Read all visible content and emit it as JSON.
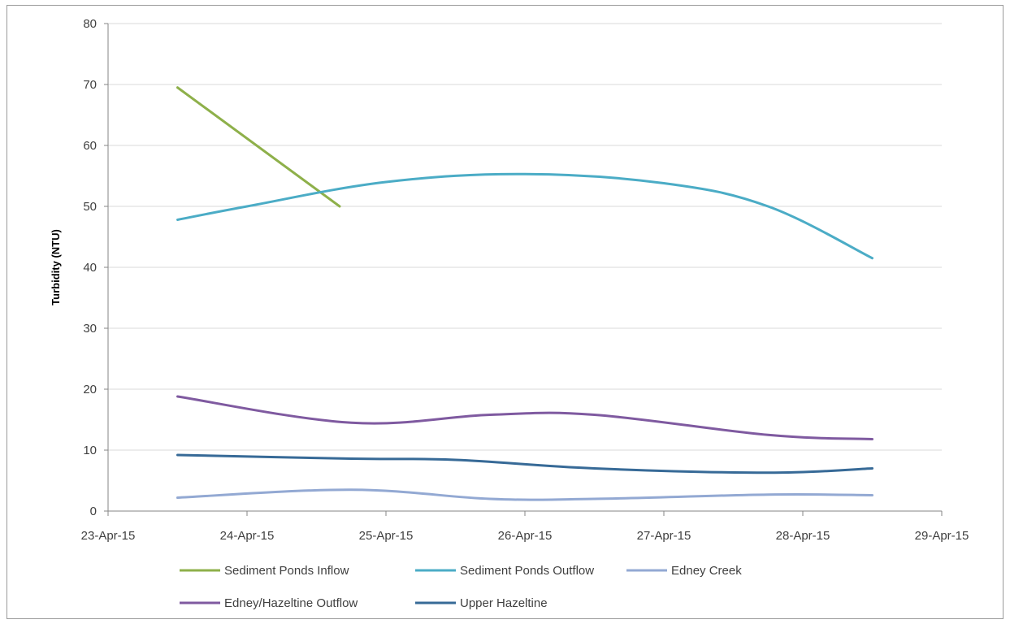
{
  "chart_data": {
    "type": "line",
    "title": "",
    "xlabel": "",
    "ylabel": "Turbidity (NTU)",
    "ylim": [
      0,
      80
    ],
    "yticks": [
      "0",
      "10",
      "20",
      "30",
      "40",
      "50",
      "60",
      "70",
      "80"
    ],
    "xlim": [
      "23-Apr-15",
      "29-Apr-15"
    ],
    "xticks": [
      "23-Apr-15",
      "24-Apr-15",
      "25-Apr-15",
      "26-Apr-15",
      "27-Apr-15",
      "28-Apr-15",
      "29-Apr-15"
    ],
    "grid": true,
    "smooth": true,
    "legend_position": "bottom",
    "series": [
      {
        "name": "Sediment Ponds Inflow",
        "color": "#8EB04A",
        "points": [
          [
            "23-Apr-15 12:00",
            69.5
          ],
          [
            "24-Apr-15 16:00",
            50.0
          ]
        ]
      },
      {
        "name": "Sediment Ponds Outflow",
        "color": "#4BACC6",
        "points": [
          [
            "23-Apr-15 12:00",
            47.8
          ],
          [
            "24-Apr-15 00:00",
            50.0
          ],
          [
            "25-Apr-15 00:00",
            54.0
          ],
          [
            "26-Apr-15 00:00",
            55.3
          ],
          [
            "27-Apr-15 00:00",
            53.8
          ],
          [
            "27-Apr-15 18:00",
            50.0
          ],
          [
            "28-Apr-15 12:00",
            41.5
          ]
        ]
      },
      {
        "name": "Edney Creek",
        "color": "#93A9D3",
        "points": [
          [
            "23-Apr-15 12:00",
            2.2
          ],
          [
            "24-Apr-15 18:00",
            3.5
          ],
          [
            "25-Apr-15 18:00",
            2.0
          ],
          [
            "26-Apr-15 12:00",
            2.0
          ],
          [
            "27-Apr-15 18:00",
            2.7
          ],
          [
            "28-Apr-15 12:00",
            2.6
          ]
        ]
      },
      {
        "name": "Edney/Hazeltine Outflow",
        "color": "#7F5AA0",
        "points": [
          [
            "23-Apr-15 12:00",
            18.8
          ],
          [
            "24-Apr-15 18:00",
            14.5
          ],
          [
            "25-Apr-15 18:00",
            15.8
          ],
          [
            "26-Apr-15 12:00",
            15.8
          ],
          [
            "27-Apr-15 18:00",
            12.5
          ],
          [
            "28-Apr-15 12:00",
            11.8
          ]
        ]
      },
      {
        "name": "Upper Hazeltine",
        "color": "#376A97",
        "points": [
          [
            "23-Apr-15 12:00",
            9.2
          ],
          [
            "24-Apr-15 18:00",
            8.6
          ],
          [
            "25-Apr-15 12:00",
            8.4
          ],
          [
            "26-Apr-15 12:00",
            7.0
          ],
          [
            "27-Apr-15 18:00",
            6.3
          ],
          [
            "28-Apr-15 12:00",
            7.0
          ]
        ]
      }
    ]
  }
}
